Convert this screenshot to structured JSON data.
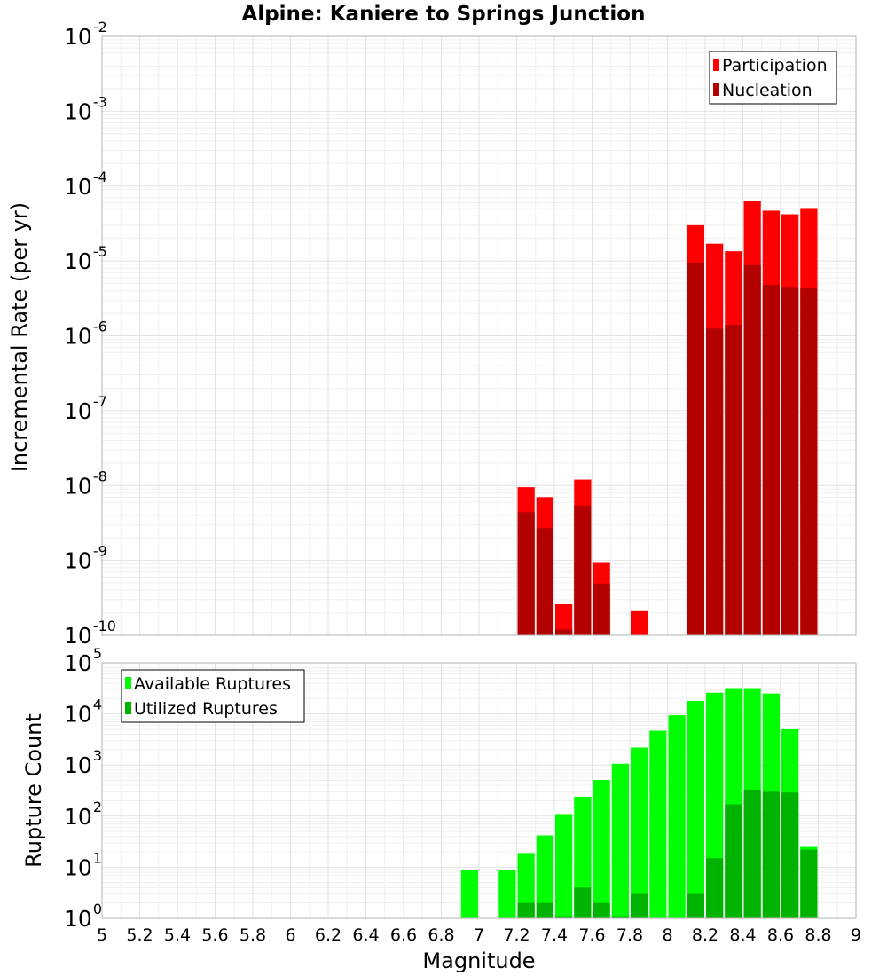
{
  "title": "Alpine: Kaniere to Springs Junction",
  "xlabel": "Magnitude",
  "chart_data": [
    {
      "type": "bar",
      "panel": "top",
      "title": "Alpine: Kaniere to Springs Junction",
      "xlabel": "Magnitude",
      "ylabel": "Incremental Rate (per yr)",
      "yscale": "log",
      "xlim": [
        5,
        9
      ],
      "ylim": [
        1e-10,
        0.01
      ],
      "x_ticks": [
        "5",
        "5.2",
        "5.4",
        "5.6",
        "5.8",
        "6",
        "6.2",
        "6.4",
        "6.6",
        "6.8",
        "7",
        "7.2",
        "7.4",
        "7.6",
        "7.8",
        "8",
        "8.2",
        "8.4",
        "8.6",
        "8.8",
        "9"
      ],
      "y_ticks": [
        {
          "base": "10",
          "exp": "-10"
        },
        {
          "base": "10",
          "exp": "-9"
        },
        {
          "base": "10",
          "exp": "-8"
        },
        {
          "base": "10",
          "exp": "-7"
        },
        {
          "base": "10",
          "exp": "-6"
        },
        {
          "base": "10",
          "exp": "-5"
        },
        {
          "base": "10",
          "exp": "-4"
        },
        {
          "base": "10",
          "exp": "-3"
        },
        {
          "base": "10",
          "exp": "-2"
        }
      ],
      "grid": true,
      "legend_position": "top-right",
      "bin_width": 0.1,
      "series": [
        {
          "name": "Participation",
          "color": "#ff0000",
          "x": [
            7.25,
            7.35,
            7.45,
            7.55,
            7.65,
            7.85,
            8.15,
            8.25,
            8.35,
            8.45,
            8.55,
            8.65,
            8.75
          ],
          "values": [
            9.5e-09,
            7e-09,
            2.6e-10,
            1.2e-08,
            9.5e-10,
            2.1e-10,
            3e-05,
            1.7e-05,
            1.35e-05,
            6.4e-05,
            4.7e-05,
            4.2e-05,
            5.1e-05
          ]
        },
        {
          "name": "Nucleation",
          "color": "#b30000",
          "x": [
            7.25,
            7.35,
            7.45,
            7.55,
            7.65,
            8.15,
            8.25,
            8.35,
            8.45,
            8.55,
            8.65,
            8.75
          ],
          "values": [
            4.4e-09,
            2.7e-09,
            1.2e-10,
            5.4e-09,
            4.9e-10,
            9.5e-06,
            1.25e-06,
            1.4e-06,
            8.8e-06,
            4.8e-06,
            4.4e-06,
            4.3e-06
          ]
        }
      ]
    },
    {
      "type": "bar",
      "panel": "bottom",
      "xlabel": "Magnitude",
      "ylabel": "Rupture Count",
      "yscale": "log",
      "xlim": [
        5,
        9
      ],
      "ylim": [
        1,
        100000
      ],
      "x_ticks": [
        "5",
        "5.2",
        "5.4",
        "5.6",
        "5.8",
        "6",
        "6.2",
        "6.4",
        "6.6",
        "6.8",
        "7",
        "7.2",
        "7.4",
        "7.6",
        "7.8",
        "8",
        "8.2",
        "8.4",
        "8.6",
        "8.8",
        "9"
      ],
      "y_ticks": [
        {
          "base": "10",
          "exp": "0"
        },
        {
          "base": "10",
          "exp": "1"
        },
        {
          "base": "10",
          "exp": "2"
        },
        {
          "base": "10",
          "exp": "3"
        },
        {
          "base": "10",
          "exp": "4"
        },
        {
          "base": "10",
          "exp": "5"
        }
      ],
      "grid": true,
      "legend_position": "top-left",
      "bin_width": 0.1,
      "series": [
        {
          "name": "Available Ruptures",
          "color": "#00ff00",
          "x": [
            6.95,
            7.15,
            7.25,
            7.35,
            7.45,
            7.55,
            7.65,
            7.75,
            7.85,
            7.95,
            8.05,
            8.15,
            8.25,
            8.35,
            8.45,
            8.55,
            8.65,
            8.75
          ],
          "values": [
            9,
            9,
            19,
            42,
            110,
            240,
            510,
            1060,
            2200,
            4700,
            9400,
            18000,
            26000,
            32000,
            32000,
            25000,
            5000,
            25
          ]
        },
        {
          "name": "Utilized Ruptures",
          "color": "#00b300",
          "x": [
            7.25,
            7.35,
            7.45,
            7.55,
            7.65,
            7.75,
            7.85,
            8.15,
            8.25,
            8.35,
            8.45,
            8.55,
            8.65,
            8.75
          ],
          "values": [
            2,
            2,
            1.1,
            4,
            2,
            1.1,
            3,
            3,
            15,
            170,
            330,
            300,
            290,
            22
          ]
        }
      ]
    }
  ]
}
